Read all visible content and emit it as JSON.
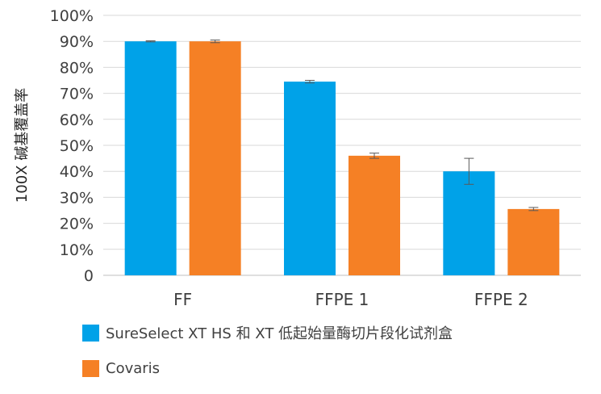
{
  "chart_data": {
    "type": "bar",
    "categories": [
      "FF",
      "FFPE 1",
      "FFPE 2"
    ],
    "series": [
      {
        "name": "SureSelect XT HS 和 XT 低起始量酶切片段化试剂盒",
        "values": [
          90,
          74.5,
          40
        ],
        "error": [
          0.2,
          0.5,
          5
        ],
        "color": "#00a2e8"
      },
      {
        "name": "Covaris",
        "values": [
          90,
          46,
          25.5
        ],
        "error": [
          0.5,
          1,
          0.6
        ],
        "color": "#f58025"
      }
    ],
    "y_tick_labels": [
      "0",
      "10%",
      "20%",
      "30%",
      "40%",
      "50%",
      "60%",
      "70%",
      "80%",
      "90%",
      "100%"
    ],
    "ylabel": "100X 碱基覆盖率",
    "xlabel": "",
    "ylim": [
      0,
      100
    ],
    "grid": true,
    "legend_position": "bottom-left"
  }
}
